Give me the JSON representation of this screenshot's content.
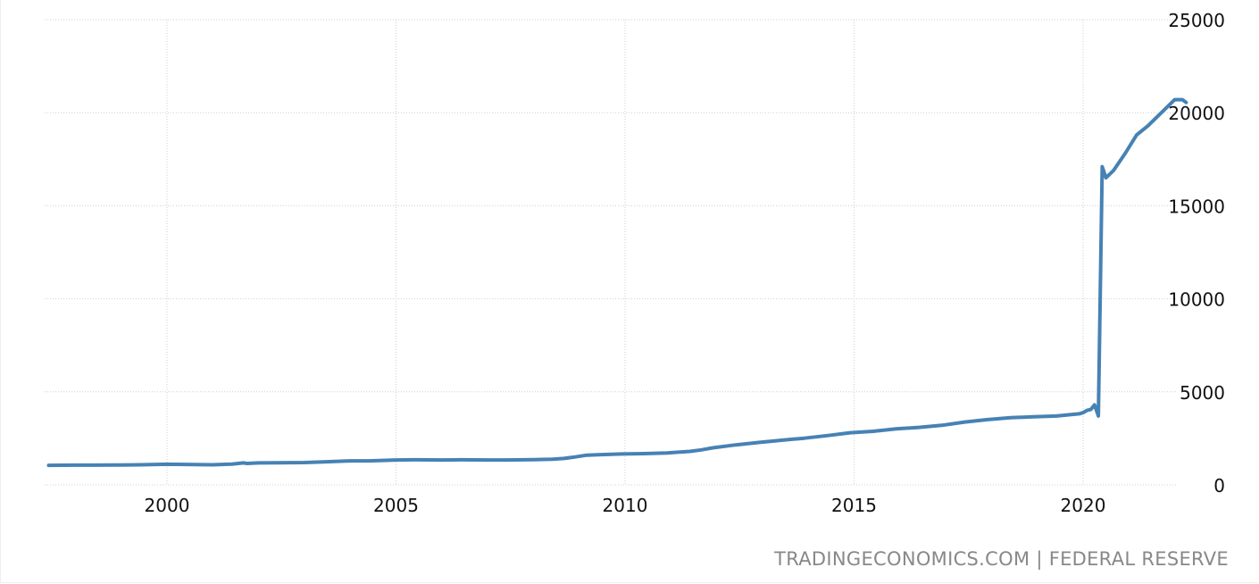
{
  "chart_data": {
    "type": "line",
    "title": "",
    "xlabel": "",
    "ylabel": "",
    "ylim": [
      0,
      25000
    ],
    "xlim": [
      "1997-06",
      "2022-04"
    ],
    "y_ticks": [
      "0",
      "5000",
      "10000",
      "15000",
      "20000",
      "25000"
    ],
    "x_ticks": [
      "2000",
      "2005",
      "2010",
      "2015",
      "2020"
    ],
    "grid": true,
    "legend": "none",
    "color": "#4682b4",
    "series": [
      {
        "x": [
          "1997-06",
          "1998-01",
          "1998-06",
          "1999-01",
          "1999-06",
          "2000-01",
          "2000-06",
          "2001-01",
          "2001-06",
          "2001-09",
          "2001-10",
          "2002-01",
          "2002-06",
          "2003-01",
          "2003-06",
          "2004-01",
          "2004-06",
          "2005-01",
          "2005-06",
          "2006-01",
          "2006-06",
          "2007-01",
          "2007-06",
          "2008-01",
          "2008-06",
          "2008-09",
          "2008-12",
          "2009-03",
          "2009-06",
          "2009-12",
          "2010-06",
          "2010-12",
          "2011-06",
          "2011-09",
          "2011-12",
          "2012-06",
          "2012-12",
          "2013-06",
          "2013-12",
          "2014-06",
          "2014-12",
          "2015-06",
          "2015-12",
          "2016-06",
          "2016-12",
          "2017-06",
          "2017-12",
          "2018-06",
          "2018-12",
          "2019-06",
          "2019-12",
          "2020-01",
          "2020-02",
          "2020-03",
          "2020-04",
          "2020-05",
          "2020-06",
          "2020-07",
          "2020-09",
          "2020-12",
          "2021-03",
          "2021-06",
          "2021-09",
          "2021-12",
          "2022-01",
          "2022-03",
          "2022-04"
        ],
        "values": [
          1050,
          1060,
          1060,
          1070,
          1080,
          1110,
          1100,
          1080,
          1120,
          1180,
          1150,
          1180,
          1190,
          1200,
          1240,
          1290,
          1290,
          1340,
          1350,
          1340,
          1350,
          1340,
          1340,
          1360,
          1380,
          1420,
          1500,
          1600,
          1620,
          1660,
          1680,
          1720,
          1800,
          1880,
          1990,
          2150,
          2280,
          2400,
          2510,
          2650,
          2800,
          2880,
          3010,
          3090,
          3200,
          3380,
          3510,
          3610,
          3660,
          3700,
          3820,
          3880,
          4000,
          4050,
          4300,
          3700,
          17100,
          16500,
          16900,
          17800,
          18800,
          19300,
          19900,
          20500,
          20700,
          20700,
          20550
        ]
      }
    ]
  },
  "source_text": "TRADINGECONOMICS.COM | FEDERAL RESERVE"
}
